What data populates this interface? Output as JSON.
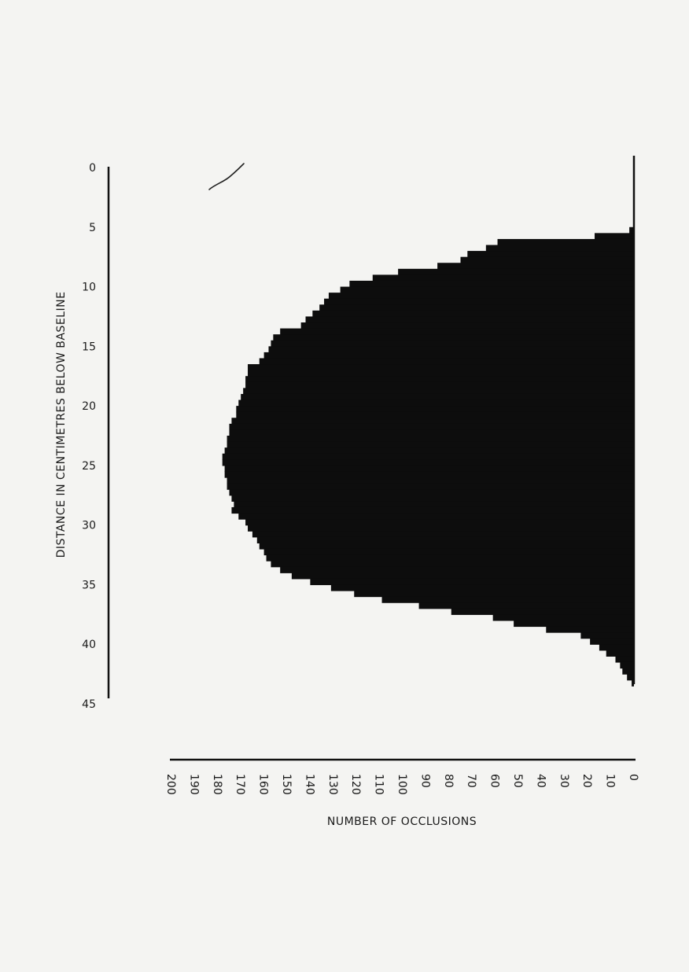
{
  "chart_data": {
    "type": "bar",
    "orientation": "horizontal",
    "bar_direction": "right-to-left",
    "bar_color": "#0d0d0d",
    "xlabel": "NUMBER OF OCCLUSIONS",
    "ylabel": "DISTANCE IN CENTIMETRES BELOW BASELINE",
    "xlim": [
      0,
      200
    ],
    "ylim": [
      0,
      45
    ],
    "x_reversed": true,
    "y_inverted": true,
    "grid": false,
    "legend": "none",
    "x_ticks": [
      200,
      190,
      180,
      170,
      160,
      150,
      140,
      130,
      120,
      110,
      100,
      90,
      80,
      70,
      60,
      50,
      40,
      30,
      20,
      10,
      0
    ],
    "y_ticks": [
      0,
      5,
      10,
      15,
      20,
      25,
      30,
      35,
      40,
      45
    ],
    "bin_width_cm": 0.5,
    "depth_start": [
      5.0,
      5.5,
      6.0,
      6.5,
      7.0,
      7.5,
      8.0,
      8.5,
      9.0,
      9.5,
      10.0,
      10.5,
      11.0,
      11.5,
      12.0,
      12.5,
      13.0,
      13.5,
      14.0,
      14.5,
      15.0,
      15.5,
      16.0,
      16.5,
      17.0,
      17.5,
      18.0,
      18.5,
      19.0,
      19.5,
      20.0,
      20.5,
      21.0,
      21.5,
      22.0,
      22.5,
      23.0,
      23.5,
      24.0,
      24.5,
      25.0,
      25.5,
      26.0,
      26.5,
      27.0,
      27.5,
      28.0,
      28.5,
      29.0,
      29.5,
      30.0,
      30.5,
      31.0,
      31.5,
      32.0,
      32.5,
      33.0,
      33.5,
      34.0,
      34.5,
      35.0,
      35.5,
      36.0,
      36.5,
      37.0,
      37.5,
      38.0,
      38.5,
      39.0,
      39.5,
      40.0,
      40.5,
      41.0,
      41.5,
      42.0,
      42.5,
      43.0
    ],
    "values": [
      2,
      17,
      59,
      64,
      72,
      75,
      85,
      102,
      113,
      123,
      127,
      132,
      134,
      136,
      139,
      142,
      144,
      153,
      156,
      157,
      158,
      160,
      162,
      167,
      167,
      168,
      168,
      169,
      170,
      171,
      172,
      172,
      174,
      175,
      175,
      176,
      176,
      177,
      178,
      178,
      177,
      177,
      176,
      176,
      175,
      174,
      173,
      174,
      171,
      168,
      167,
      165,
      163,
      162,
      160,
      159,
      157,
      153,
      148,
      140,
      131,
      121,
      109,
      93,
      79,
      61,
      52,
      38,
      23,
      19,
      15,
      12,
      8,
      6,
      5,
      3,
      1
    ]
  }
}
